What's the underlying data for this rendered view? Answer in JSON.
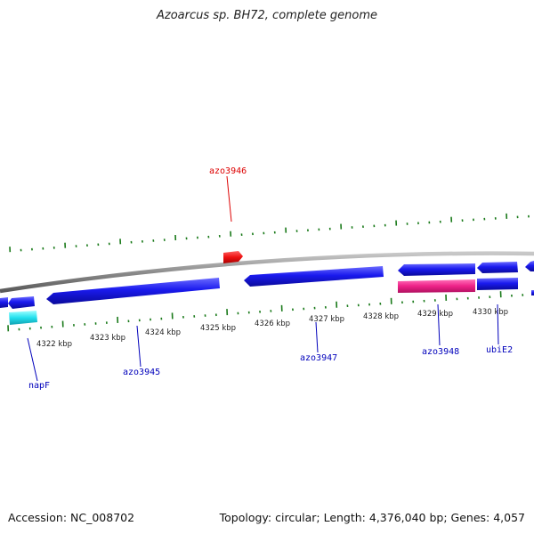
{
  "title": "Azoarcus sp. BH72, complete genome",
  "footer": {
    "accession": "Accession: NC_008702",
    "summary": "Topology: circular; Length: 4,376,040 bp; Genes: 4,057"
  },
  "scale_labels": [
    "4322 kbp",
    "4323 kbp",
    "4324 kbp",
    "4325 kbp",
    "4326 kbp",
    "4327 kbp",
    "4328 kbp",
    "4329 kbp",
    "4330 kbp"
  ],
  "genes": [
    {
      "name": "azo3946",
      "color": "#dd0000"
    },
    {
      "name": "napF",
      "color": "#0000bb"
    },
    {
      "name": "azo3945",
      "color": "#0000bb"
    },
    {
      "name": "azo3947",
      "color": "#0000bb"
    },
    {
      "name": "azo3948",
      "color": "#0000bb"
    },
    {
      "name": "ubiE2",
      "color": "#0000bb"
    }
  ],
  "colors": {
    "backbone": "#8c8c8c",
    "cds": "#1a1aee",
    "forward_feature": "#ee1111",
    "rna_feature": "#ee2288",
    "other_feature": "#22e0ee",
    "tick": "#1a7a1a"
  }
}
